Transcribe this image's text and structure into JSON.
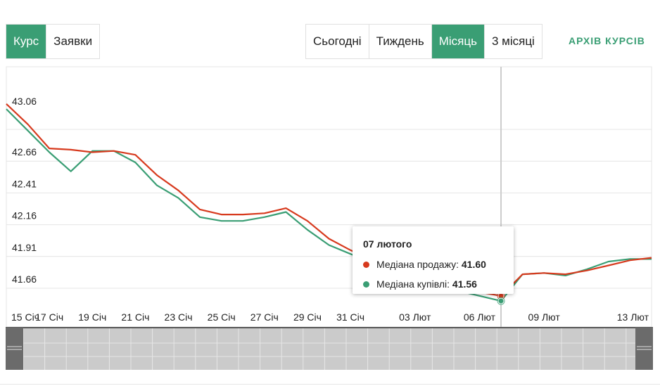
{
  "tabs_left": [
    {
      "label": "Курс",
      "active": true
    },
    {
      "label": "Заявки",
      "active": false
    }
  ],
  "tabs_right": [
    {
      "label": "Сьогодні",
      "active": false
    },
    {
      "label": "Тиждень",
      "active": false
    },
    {
      "label": "Місяць",
      "active": true
    },
    {
      "label": "3 місяці",
      "active": false
    }
  ],
  "archive_link": "АРХІВ КУРСІВ",
  "colors": {
    "accent": "#3a9e74",
    "sell": "#d73a1e",
    "buy": "#3a9e74"
  },
  "tooltip": {
    "title": "07 лютого",
    "rows": [
      {
        "label": "Медіана продажу:",
        "value": "41.60",
        "color": "#d73a1e"
      },
      {
        "label": "Медіана купівлі:",
        "value": "41.56",
        "color": "#3a9e74"
      }
    ]
  },
  "chart_data": {
    "type": "line",
    "x": [
      "15 Січ",
      "16 Січ",
      "17 Січ",
      "18 Січ",
      "19 Січ",
      "20 Січ",
      "21 Січ",
      "22 Січ",
      "23 Січ",
      "24 Січ",
      "25 Січ",
      "26 Січ",
      "27 Січ",
      "28 Січ",
      "29 Січ",
      "30 Січ",
      "31 Січ",
      "01 Лют",
      "02 Лют",
      "03 Лют",
      "04 Лют",
      "05 Лют",
      "06 Лют",
      "07 Лют",
      "08 Лют",
      "09 Лют",
      "10 Лют",
      "11 Лют",
      "12 Лют",
      "13 Лют",
      "14 Лют"
    ],
    "x_tick_labels": [
      "15 Січ",
      "17 Січ",
      "19 Січ",
      "21 Січ",
      "23 Січ",
      "25 Січ",
      "27 Січ",
      "29 Січ",
      "31 Січ",
      "03 Лют",
      "06 Лют",
      "09 Лют",
      "13 Лют"
    ],
    "x_tick_index": [
      0,
      2,
      4,
      6,
      8,
      10,
      12,
      14,
      16,
      19,
      22,
      25,
      29
    ],
    "y_ticks": [
      "43.06",
      "42.66",
      "42.41",
      "42.16",
      "41.91",
      "41.66"
    ],
    "y_tick_values": [
      43.06,
      42.66,
      42.41,
      42.16,
      41.91,
      41.66
    ],
    "y_gridlines": [
      42.91,
      42.66,
      42.41,
      42.16,
      41.91,
      41.66
    ],
    "ylim": [
      41.55,
      43.14
    ],
    "grid": true,
    "hover_index": 23,
    "series": [
      {
        "name": "Медіана продажу",
        "color": "#d73a1e",
        "values": [
          43.11,
          42.95,
          42.76,
          42.75,
          42.73,
          42.74,
          42.71,
          42.55,
          42.43,
          42.28,
          42.24,
          42.24,
          42.25,
          42.29,
          42.19,
          42.05,
          41.96,
          41.88,
          41.8,
          41.74,
          41.68,
          41.66,
          41.63,
          41.6,
          41.77,
          41.78,
          41.77,
          41.8,
          41.84,
          41.88,
          41.9
        ]
      },
      {
        "name": "Медіана купівлі",
        "color": "#3a9e74",
        "values": [
          43.07,
          42.9,
          42.73,
          42.58,
          42.74,
          42.74,
          42.65,
          42.47,
          42.37,
          42.22,
          42.19,
          42.19,
          42.22,
          42.26,
          42.12,
          42.0,
          41.93,
          41.86,
          41.78,
          41.72,
          41.66,
          41.64,
          41.6,
          41.56,
          41.77,
          41.78,
          41.76,
          41.81,
          41.87,
          41.89,
          41.89
        ]
      }
    ]
  }
}
